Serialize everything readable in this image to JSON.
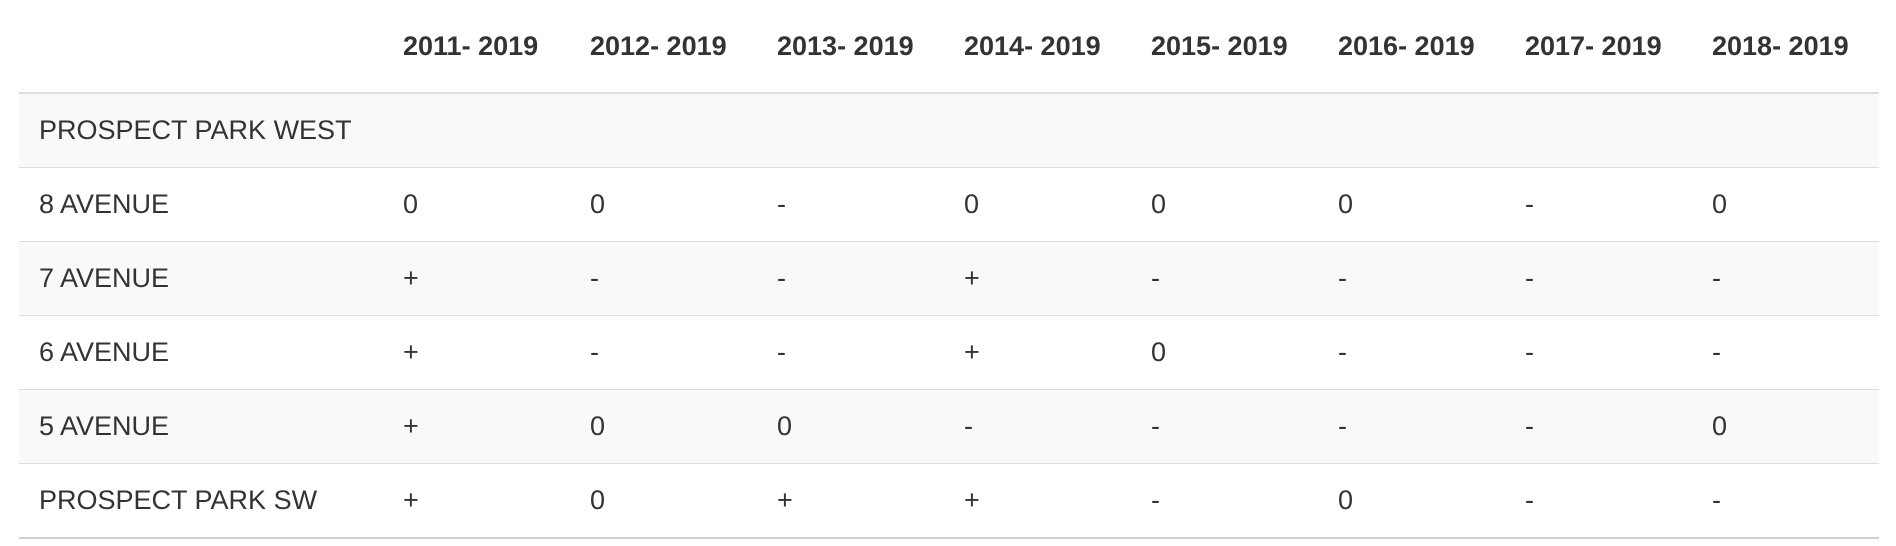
{
  "table": {
    "columns": [
      "",
      "2011- 2019",
      "2012- 2019",
      "2013- 2019",
      "2014- 2019",
      "2015- 2019",
      "2016- 2019",
      "2017- 2019",
      "2018- 2019"
    ],
    "rows": [
      {
        "name": "PROSPECT PARK WEST",
        "cells": [
          "",
          "",
          "",
          "",
          "",
          "",
          "",
          ""
        ]
      },
      {
        "name": "8 AVENUE",
        "cells": [
          "0",
          "0",
          "-",
          "0",
          "0",
          "0",
          "-",
          "0"
        ]
      },
      {
        "name": "7 AVENUE",
        "cells": [
          "+",
          "-",
          "-",
          "+",
          "-",
          "-",
          "-",
          "-"
        ]
      },
      {
        "name": "6 AVENUE",
        "cells": [
          "+",
          "-",
          "-",
          "+",
          "0",
          "-",
          "-",
          "-"
        ]
      },
      {
        "name": "5 AVENUE",
        "cells": [
          "+",
          "0",
          "0",
          "-",
          "-",
          "-",
          "-",
          "0"
        ]
      },
      {
        "name": "PROSPECT PARK SW",
        "cells": [
          "+",
          "0",
          "+",
          "+",
          "-",
          "0",
          "-",
          "-"
        ]
      }
    ]
  }
}
